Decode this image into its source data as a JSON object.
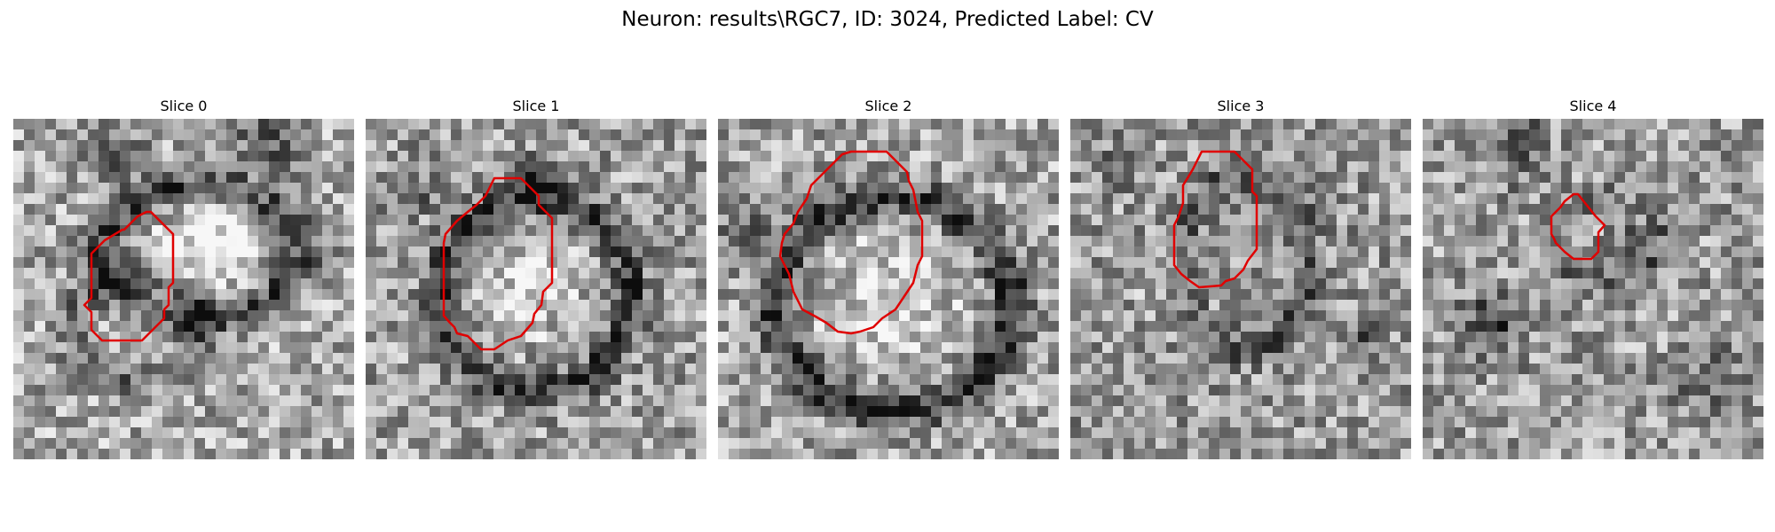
{
  "figure": {
    "title": "Neuron: results\\RGC7, ID: 3024, Predicted Label: CV",
    "outline_color": "#e00000",
    "colormap": "grayscale",
    "panels": [
      {
        "title": "Slice 0"
      },
      {
        "title": "Slice 1"
      },
      {
        "title": "Slice 2"
      },
      {
        "title": "Slice 3"
      },
      {
        "title": "Slice 4"
      }
    ]
  }
}
